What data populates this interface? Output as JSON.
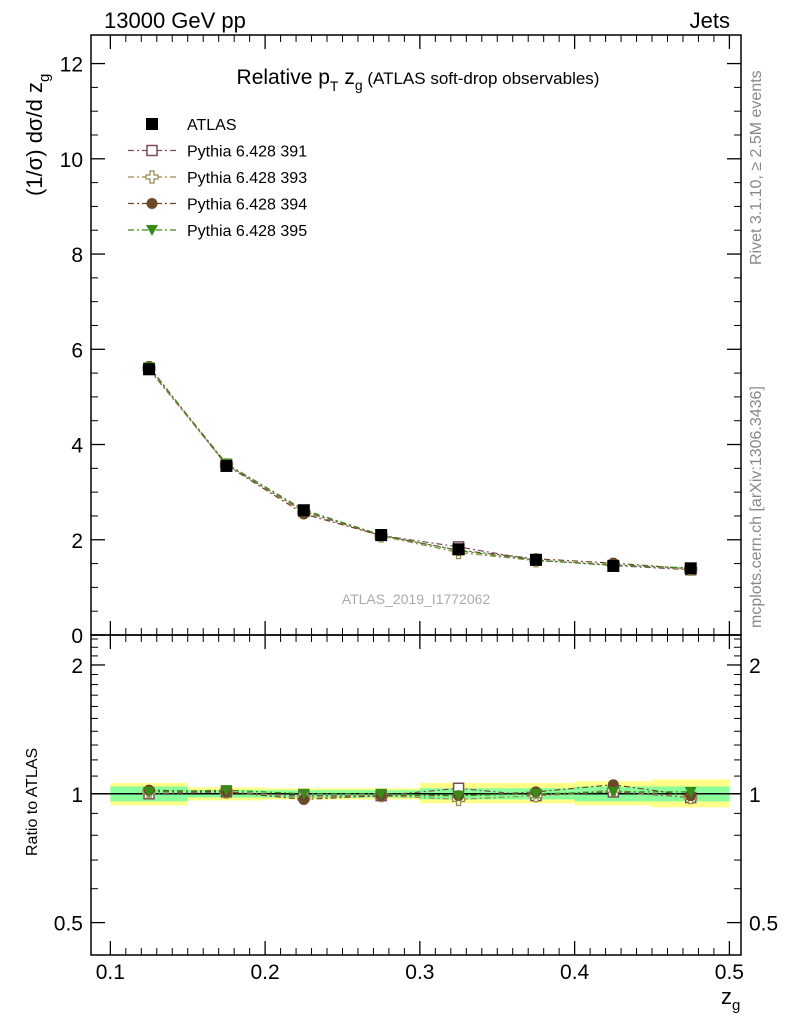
{
  "header": {
    "energy_label": "13000 GeV pp",
    "process_label": "Jets"
  },
  "side_text": {
    "rivet": "Rivet 3.1.10, ≥ 2.5M events",
    "mcplots": "mcplots.cern.ch [arXiv:1306.3436]"
  },
  "chart_data": [
    {
      "type": "scatter",
      "title": {
        "prefix": "Relative p",
        "sub1": "T",
        "mid": " z",
        "sub2": "g",
        "suffix": " (ATLAS soft-drop observables)"
      },
      "ylabel": {
        "main": "(1/σ) dσ/d z",
        "sub": "g"
      },
      "watermark": "ATLAS_2019_I1772062",
      "x": [
        0.125,
        0.175,
        0.225,
        0.275,
        0.325,
        0.375,
        0.425,
        0.475
      ],
      "xlim": [
        0.0875,
        0.5075
      ],
      "ylim": [
        0,
        12.6
      ],
      "yticks": [
        0,
        2,
        4,
        6,
        8,
        10,
        12
      ],
      "legend_placement": "top-left",
      "series": [
        {
          "name": "ATLAS",
          "marker": "square-filled",
          "color": "#000000",
          "values": [
            5.58,
            3.55,
            2.62,
            2.1,
            1.8,
            1.58,
            1.45,
            1.4
          ]
        },
        {
          "name": "Pythia 6.428 391",
          "marker": "square-open",
          "color": "#7a4a5a",
          "values": [
            5.58,
            3.58,
            2.6,
            2.09,
            1.85,
            1.57,
            1.46,
            1.37
          ]
        },
        {
          "name": "Pythia 6.428 393",
          "marker": "cross-open",
          "color": "#9a8a50",
          "values": [
            5.6,
            3.57,
            2.58,
            2.08,
            1.73,
            1.56,
            1.48,
            1.38
          ]
        },
        {
          "name": "Pythia 6.428 394",
          "marker": "circle-filled",
          "color": "#6a4a2a",
          "values": [
            5.64,
            3.57,
            2.54,
            2.09,
            1.78,
            1.6,
            1.51,
            1.39
          ]
        },
        {
          "name": "Pythia 6.428 395",
          "marker": "triangle-down-filled",
          "color": "#3a8a1a",
          "values": [
            5.62,
            3.6,
            2.63,
            2.1,
            1.77,
            1.57,
            1.47,
            1.41
          ]
        }
      ]
    },
    {
      "type": "scatter",
      "ylabel": "Ratio to ATLAS",
      "xlabel": {
        "main": "z",
        "sub": "g"
      },
      "x": [
        0.125,
        0.175,
        0.225,
        0.275,
        0.325,
        0.375,
        0.425,
        0.475
      ],
      "xlim": [
        0.0875,
        0.5075
      ],
      "xticks": [
        0.1,
        0.2,
        0.3,
        0.4,
        0.5
      ],
      "xtick_labels": [
        "0.1",
        "0.2",
        "0.3",
        "0.4",
        "0.5"
      ],
      "ylim": [
        0.42,
        2.35
      ],
      "y_scale": "log",
      "yticks": [
        0.5,
        1,
        2
      ],
      "ytick_labels": [
        "0.5",
        "1",
        "2"
      ],
      "bands": {
        "x_edges": [
          0.1,
          0.15,
          0.2,
          0.25,
          0.3,
          0.35,
          0.4,
          0.45,
          0.5
        ],
        "green": [
          [
            0.96,
            1.04
          ],
          [
            0.98,
            1.02
          ],
          [
            0.98,
            1.02
          ],
          [
            0.98,
            1.02
          ],
          [
            0.97,
            1.03
          ],
          [
            0.97,
            1.03
          ],
          [
            0.96,
            1.04
          ],
          [
            0.96,
            1.04
          ]
        ],
        "yellow": [
          [
            0.94,
            1.06
          ],
          [
            0.965,
            1.035
          ],
          [
            0.97,
            1.03
          ],
          [
            0.97,
            1.03
          ],
          [
            0.95,
            1.06
          ],
          [
            0.95,
            1.06
          ],
          [
            0.94,
            1.07
          ],
          [
            0.93,
            1.08
          ]
        ],
        "green_color": "#88ff99",
        "yellow_color": "#ffff88"
      },
      "series": [
        {
          "name": "Pythia 6.428 391",
          "marker": "square-open",
          "color": "#7a4a5a",
          "values": [
            1.0,
            1.01,
            0.99,
            0.99,
            1.03,
            0.99,
            1.01,
            0.98
          ]
        },
        {
          "name": "Pythia 6.428 393",
          "marker": "cross-open",
          "color": "#9a8a50",
          "values": [
            1.01,
            1.01,
            0.98,
            0.99,
            0.97,
            0.99,
            1.02,
            0.98
          ]
        },
        {
          "name": "Pythia 6.428 394",
          "marker": "circle-filled",
          "color": "#6a4a2a",
          "values": [
            1.02,
            1.01,
            0.97,
            0.99,
            0.99,
            1.01,
            1.05,
            0.99
          ]
        },
        {
          "name": "Pythia 6.428 395",
          "marker": "triangle-down-filled",
          "color": "#3a8a1a",
          "values": [
            1.01,
            1.02,
            1.0,
            1.0,
            0.99,
            1.0,
            1.01,
            1.01
          ]
        }
      ]
    }
  ]
}
